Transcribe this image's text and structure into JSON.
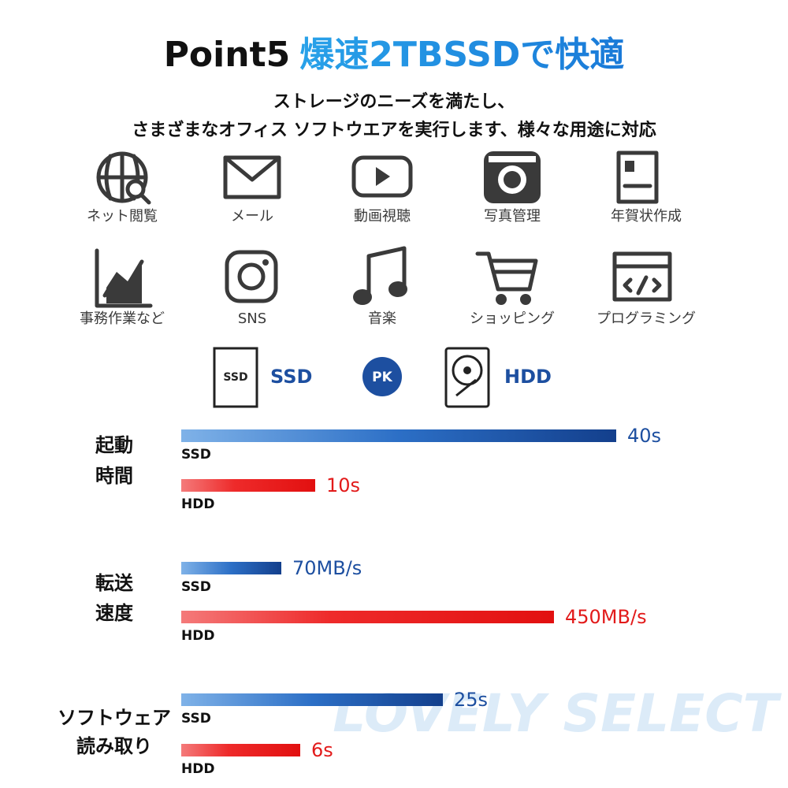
{
  "header": {
    "title_prefix": "Point5",
    "title_highlight": "爆速2TBSSDで快適",
    "subtitle_lines": [
      "ストレージのニーズを満たし、",
      "さまざまなオフィス ソフトウエアを実行します、様々な用途に対応"
    ]
  },
  "apps": [
    "ネット閲覧",
    "メール",
    "動画視聴",
    "写真管理",
    "年賀状作成",
    "事務作業など",
    "SNS",
    "音楽",
    "ショッピング",
    "プログラミング"
  ],
  "comparison": {
    "ssd": "SSD",
    "badge": "PK",
    "hdd": "HDD",
    "groups": [
      {
        "label_lines": [
          "起動",
          "時間"
        ],
        "rows": [
          {
            "name": "SSD",
            "value_label": "40s"
          },
          {
            "name": "HDD",
            "value_label": "10s"
          }
        ]
      },
      {
        "label_lines": [
          "転送",
          "速度"
        ],
        "rows": [
          {
            "name": "SSD",
            "value_label": "70MB/s"
          },
          {
            "name": "HDD",
            "value_label": "450MB/s"
          }
        ]
      },
      {
        "label_lines": [
          "ソフトウェア",
          "読み取り"
        ],
        "rows": [
          {
            "name": "SSD",
            "value_label": "25s"
          },
          {
            "name": "HDD",
            "value_label": "6s"
          }
        ]
      }
    ]
  },
  "watermark": "LOVELY SELECT"
}
